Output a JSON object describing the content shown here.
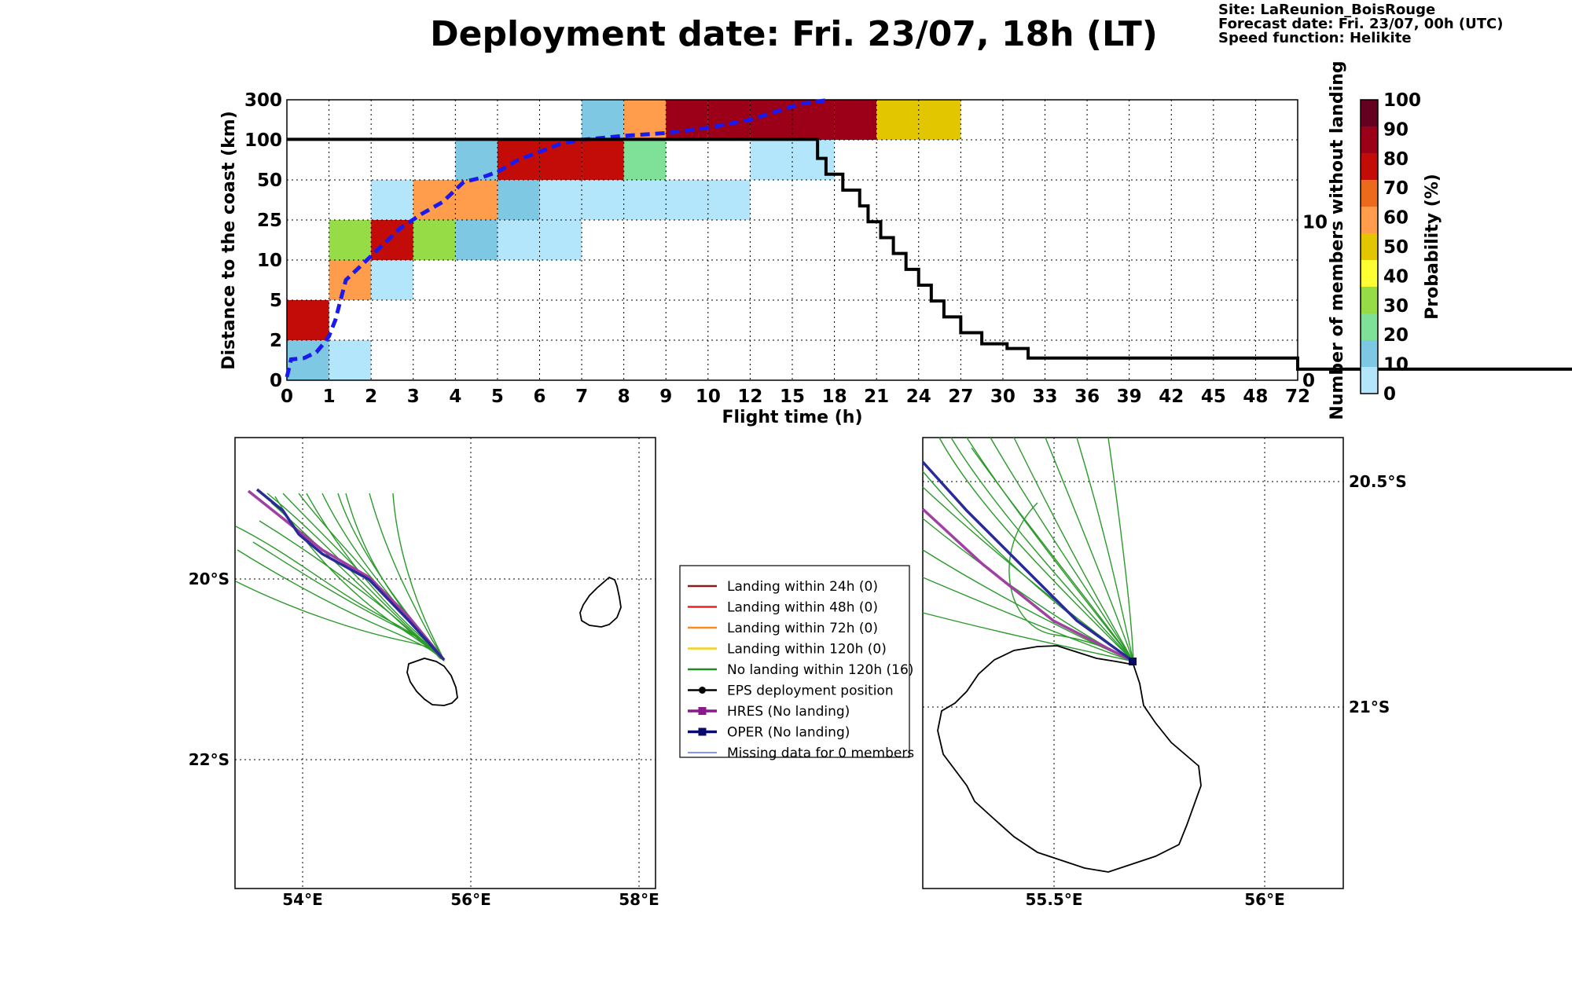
{
  "header": {
    "title": "Deployment date: Fri. 23/07, 18h (LT)",
    "site": "Site: LaReunion_BoisRouge",
    "forecast": "Forecast date: Fri. 23/07, 00h (UTC)",
    "speed": "Speed function: Helikite"
  },
  "chart_data": [
    {
      "type": "heatmap",
      "xlabel": "Flight time (h)",
      "ylabel": "Distance to the coast (km)",
      "y2label": "Number of members without landing",
      "x_ticks": [
        "0",
        "1",
        "2",
        "3",
        "4",
        "5",
        "6",
        "7",
        "8",
        "9",
        "10",
        "12",
        "15",
        "18",
        "21",
        "24",
        "27",
        "30",
        "33",
        "36",
        "39",
        "42",
        "45",
        "48",
        "72"
      ],
      "y_ticks": [
        "0",
        "2",
        "5",
        "10",
        "25",
        "50",
        "100",
        "300"
      ],
      "y2_ticks": [
        "0",
        "10"
      ],
      "y2lim": [
        0,
        17.7
      ],
      "grid": true,
      "cells": [
        {
          "x": 0,
          "y": 0,
          "value": 10
        },
        {
          "x": 1,
          "y": 0,
          "value": 0
        },
        {
          "x": 0,
          "y": 1,
          "value": 80
        },
        {
          "x": 1,
          "y": 2,
          "value": 60
        },
        {
          "x": 2,
          "y": 2,
          "value": 0
        },
        {
          "x": 1,
          "y": 3,
          "value": 30
        },
        {
          "x": 2,
          "y": 3,
          "value": 80
        },
        {
          "x": 3,
          "y": 3,
          "value": 30
        },
        {
          "x": 4,
          "y": 3,
          "value": 10
        },
        {
          "x": 5,
          "y": 3,
          "value": 0
        },
        {
          "x": 6,
          "y": 3,
          "value": 0
        },
        {
          "x": 2,
          "y": 4,
          "value": 0
        },
        {
          "x": 3,
          "y": 4,
          "value": 60
        },
        {
          "x": 4,
          "y": 4,
          "value": 60
        },
        {
          "x": 5,
          "y": 4,
          "value": 10
        },
        {
          "x": 6,
          "y": 4,
          "value": 0
        },
        {
          "x": 7,
          "y": 4,
          "value": 0
        },
        {
          "x": 8,
          "y": 4,
          "value": 0
        },
        {
          "x": 9,
          "y": 4,
          "value": 0
        },
        {
          "x": 10,
          "y": 4,
          "value": 0
        },
        {
          "x": 4,
          "y": 5,
          "value": 10
        },
        {
          "x": 5,
          "y": 5,
          "value": 80
        },
        {
          "x": 6,
          "y": 5,
          "value": 80
        },
        {
          "x": 7,
          "y": 5,
          "value": 80
        },
        {
          "x": 8,
          "y": 5,
          "value": 20
        },
        {
          "x": 11,
          "y": 5,
          "value": 0
        },
        {
          "x": 12,
          "y": 5,
          "value": 0
        },
        {
          "x": 7,
          "y": 6,
          "value": 10
        },
        {
          "x": 8,
          "y": 6,
          "value": 60
        },
        {
          "x": 9,
          "y": 6,
          "value": 90
        },
        {
          "x": 10,
          "y": 6,
          "value": 90
        },
        {
          "x": 11,
          "y": 6,
          "value": 90
        },
        {
          "x": 12,
          "y": 6,
          "value": 90
        },
        {
          "x": 13,
          "y": 6,
          "value": 90
        },
        {
          "x": 14,
          "y": 6,
          "value": 50
        },
        {
          "x": 15,
          "y": 6,
          "value": 50
        }
      ],
      "colorbar": {
        "label": "Probability (%)",
        "ticks": [
          "0",
          "10",
          "20",
          "30",
          "40",
          "50",
          "60",
          "70",
          "80",
          "90",
          "100"
        ],
        "colors": [
          "#b3e5fb",
          "#7ec8e3",
          "#7ee197",
          "#95dc46",
          "#ffff33",
          "#e2c700",
          "#ff9d4d",
          "#eb6a1c",
          "#c30b08",
          "#9b0018",
          "#650020"
        ]
      },
      "series": [
        {
          "name": "",
          "style": "blue-dashed",
          "points": [
            [
              0,
              0.08
            ],
            [
              0.1,
              0.52
            ],
            [
              0.4,
              0.55
            ],
            [
              0.7,
              0.7
            ],
            [
              0.9,
              0.95
            ],
            [
              1.0,
              1.1
            ],
            [
              1.15,
              1.5
            ],
            [
              1.4,
              2.5
            ],
            [
              1.8,
              2.9
            ],
            [
              2.2,
              3.3
            ],
            [
              2.7,
              3.8
            ],
            [
              3.2,
              4.15
            ],
            [
              3.7,
              4.45
            ],
            [
              4.2,
              4.95
            ],
            [
              4.6,
              5.05
            ],
            [
              5.0,
              5.2
            ],
            [
              5.5,
              5.5
            ],
            [
              6.0,
              5.7
            ],
            [
              6.5,
              5.9
            ],
            [
              7.0,
              6.0
            ],
            [
              7.5,
              6.05
            ],
            [
              8.0,
              6.1
            ],
            [
              9.0,
              6.17
            ],
            [
              10.0,
              6.3
            ],
            [
              11.0,
              6.5
            ],
            [
              11.6,
              6.7
            ],
            [
              12.2,
              6.9
            ],
            [
              12.9,
              7.0
            ]
          ]
        },
        {
          "name": "",
          "style": "black-step",
          "members": [
            [
              0,
              15.2
            ],
            [
              12.4,
              15.2
            ],
            [
              12.6,
              14
            ],
            [
              12.8,
              13
            ],
            [
              13.2,
              12
            ],
            [
              13.6,
              11
            ],
            [
              13.8,
              10
            ],
            [
              14.1,
              9
            ],
            [
              14.4,
              8
            ],
            [
              14.7,
              7
            ],
            [
              15.0,
              6
            ],
            [
              15.3,
              5
            ],
            [
              15.6,
              4
            ],
            [
              16.0,
              3
            ],
            [
              16.5,
              2.3
            ],
            [
              17.1,
              2
            ],
            [
              17.6,
              1.4
            ],
            [
              24.0,
              0.7
            ],
            [
              72,
              0.7
            ]
          ]
        }
      ]
    }
  ],
  "map_left": {
    "x_ticks": [
      "54°E",
      "56°E",
      "58°E"
    ],
    "y_ticks": [
      "20°S",
      "22°S"
    ]
  },
  "map_right": {
    "x_ticks": [
      "55.5°E",
      "56°E"
    ],
    "y_ticks": [
      "20.5°S",
      "21°S"
    ]
  },
  "legend": {
    "items": [
      {
        "label": "Landing within 24h (0)",
        "color": "#8b1a1a",
        "style": "line"
      },
      {
        "label": "Landing within 48h (0)",
        "color": "#ee2222",
        "style": "line"
      },
      {
        "label": "Landing within 72h (0)",
        "color": "#ff8c1a",
        "style": "line"
      },
      {
        "label": "Landing within 120h (0)",
        "color": "#f2d21a",
        "style": "line"
      },
      {
        "label": "No landing within 120h (16)",
        "color": "#1e8c1e",
        "style": "line"
      },
      {
        "label": "EPS deployment position",
        "color": "#000000",
        "style": "dot"
      },
      {
        "label": "HRES (No landing)",
        "color": "#8b1a8b",
        "style": "square"
      },
      {
        "label": "OPER (No landing)",
        "color": "#0a0a6e",
        "style": "square"
      },
      {
        "label": "Missing data for 0 members",
        "color": "#4455ee",
        "style": "thin"
      }
    ]
  }
}
